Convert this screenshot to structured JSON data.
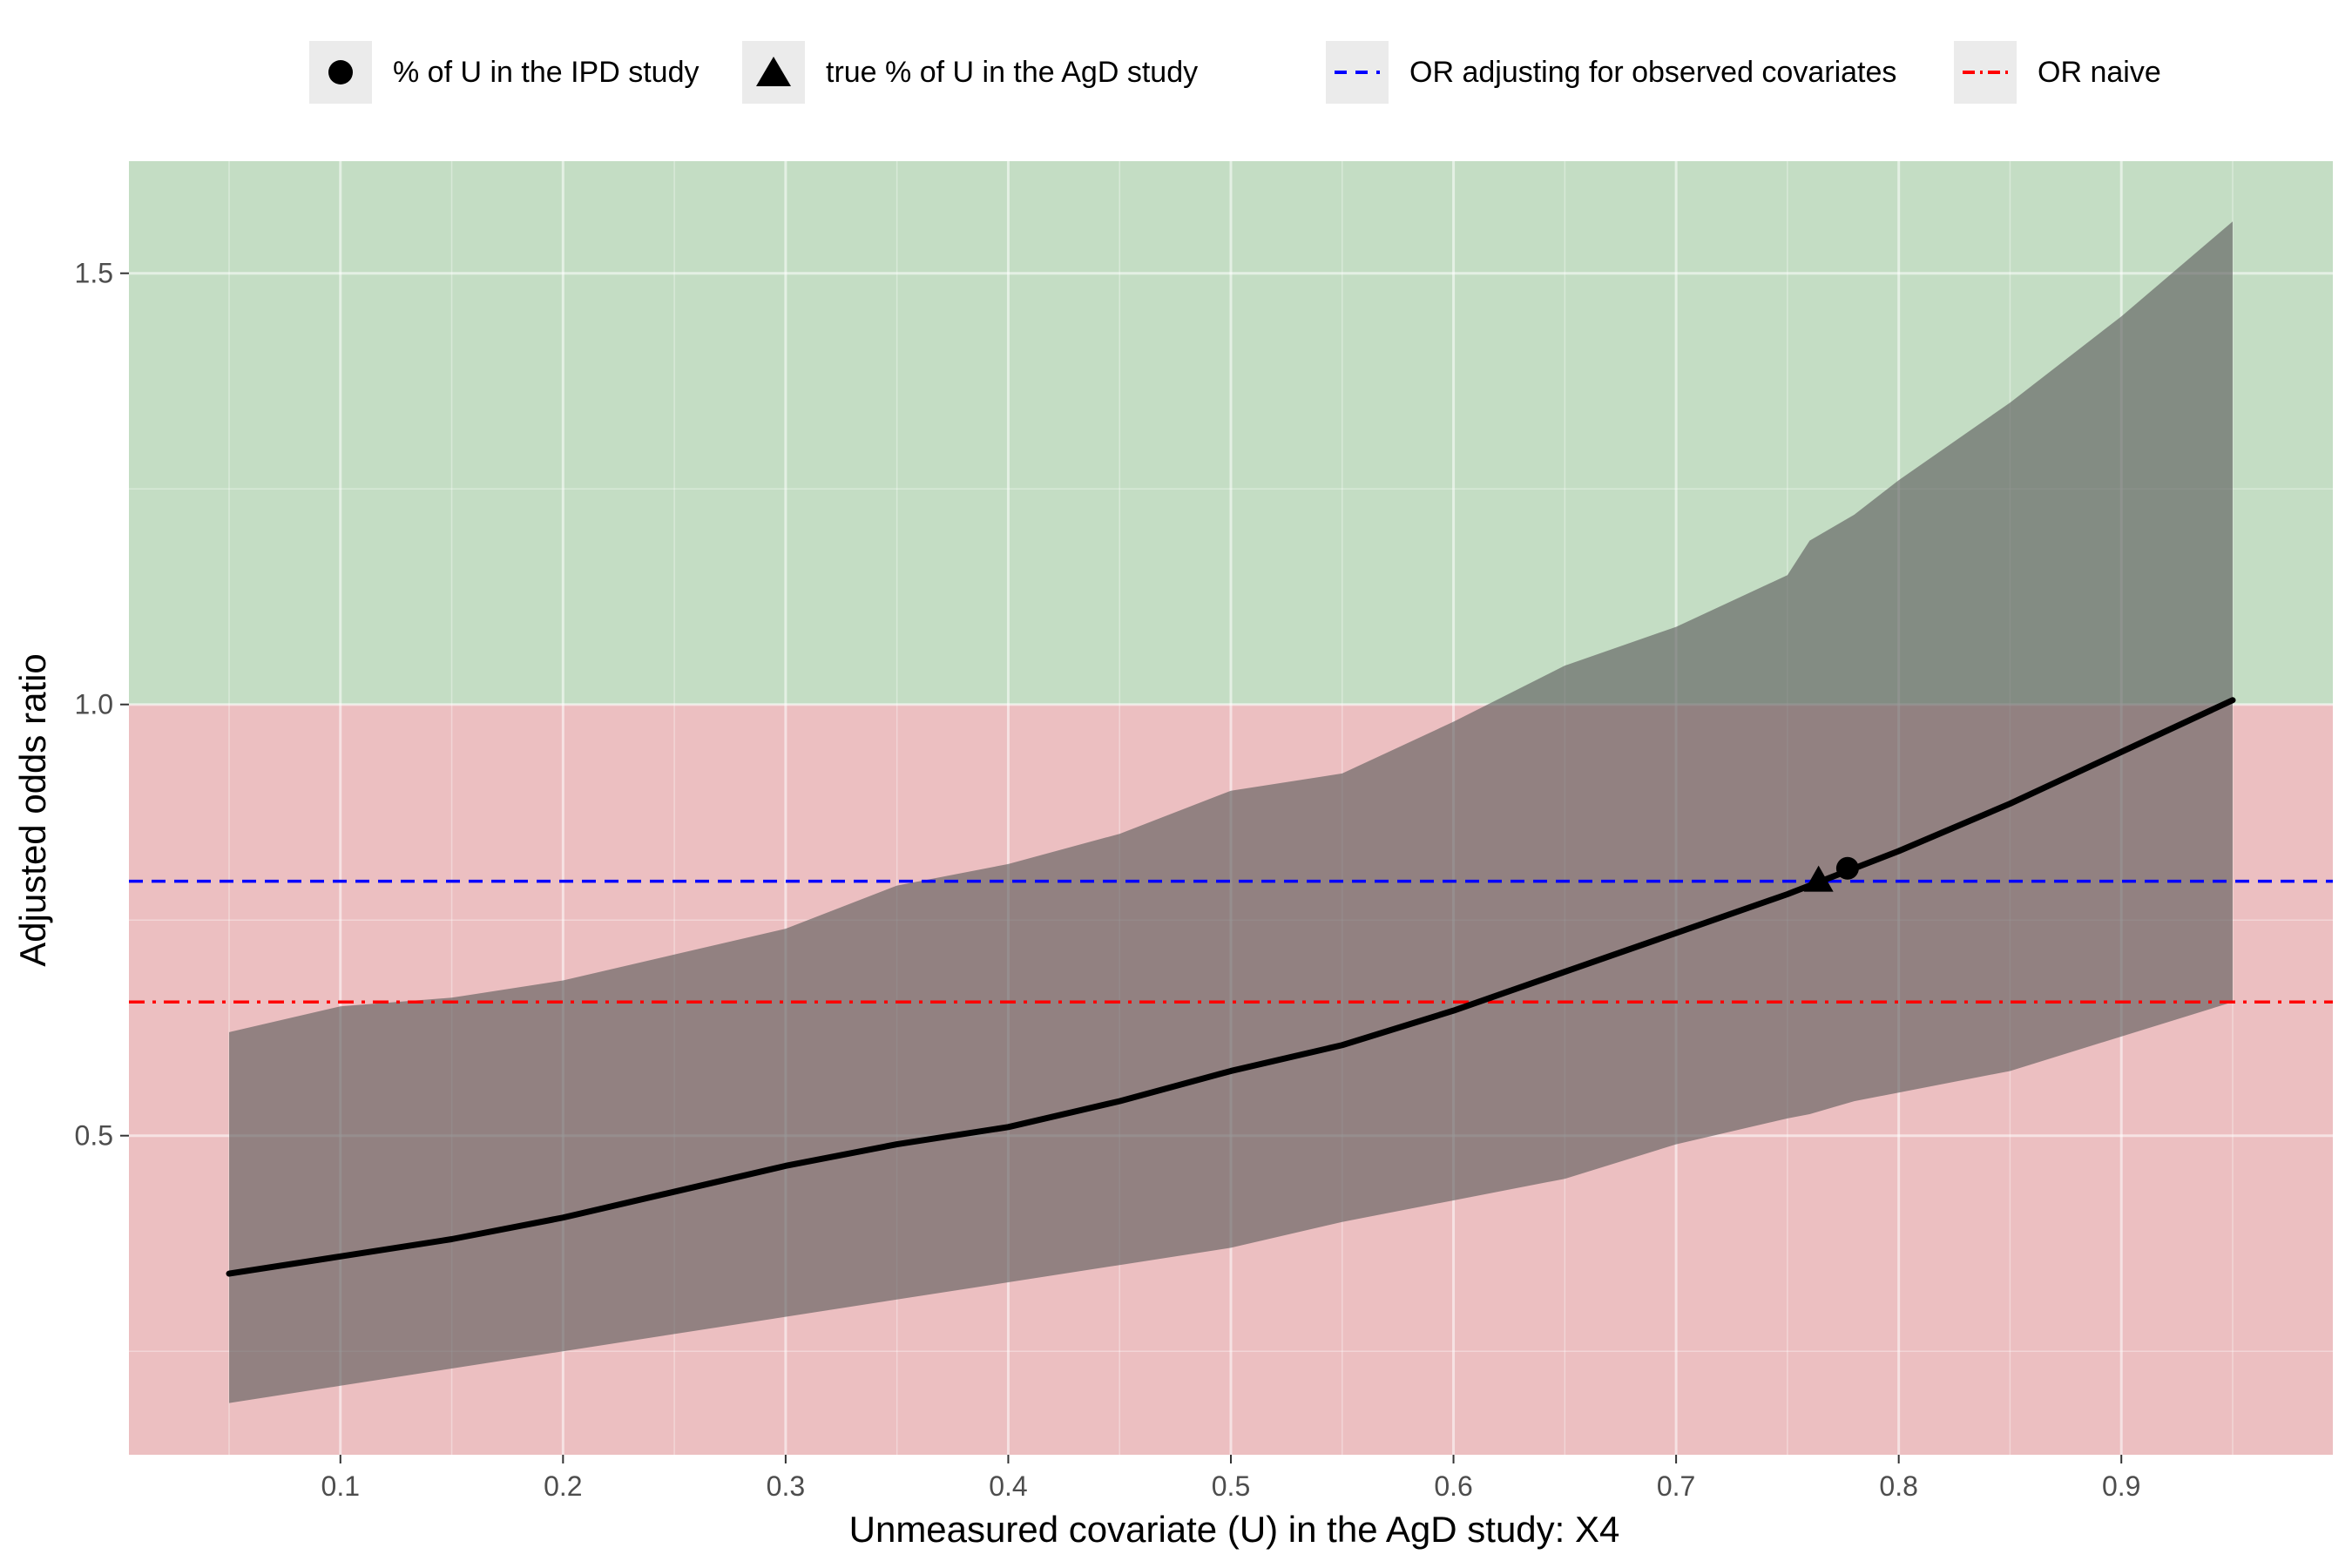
{
  "legend": {
    "items": [
      {
        "label": "% of U in the IPD study",
        "key": "circle"
      },
      {
        "label": "true % of U in the AgD study",
        "key": "triangle"
      },
      {
        "label": "OR adjusting for observed covariates",
        "key": "dashed-line",
        "color": "#0000ff"
      },
      {
        "label": "OR naive",
        "key": "dotdash-line",
        "color": "#ff0000"
      }
    ]
  },
  "chart_data": {
    "type": "line",
    "title": "",
    "xlabel": "Unmeasured covariate (U) in the AgD study: X4",
    "ylabel": "Adjusted odds ratio",
    "xlim": [
      0.005,
      0.995
    ],
    "ylim": [
      0.13,
      1.63
    ],
    "x_ticks": [
      0.1,
      0.2,
      0.3,
      0.4,
      0.5,
      0.6,
      0.7,
      0.8,
      0.9
    ],
    "x_tick_labels": [
      "0.1",
      "0.2",
      "0.3",
      "0.4",
      "0.5",
      "0.6",
      "0.7",
      "0.8",
      "0.9"
    ],
    "y_ticks": [
      0.5,
      1.0,
      1.5
    ],
    "y_tick_labels": [
      "0.5",
      "1.0",
      "1.5"
    ],
    "grid": true,
    "background_regions": [
      {
        "from": 1.0,
        "to": 1.63,
        "color": "#c4ddc4"
      },
      {
        "from": 0.13,
        "to": 1.0,
        "color": "#ecbfc1"
      }
    ],
    "series": [
      {
        "type": "line",
        "color": "#000000",
        "x": [
          0.05,
          0.1,
          0.15,
          0.2,
          0.25,
          0.3,
          0.35,
          0.4,
          0.45,
          0.5,
          0.55,
          0.6,
          0.65,
          0.7,
          0.75,
          0.8,
          0.85,
          0.9,
          0.95
        ],
        "y": [
          0.34,
          0.36,
          0.38,
          0.405,
          0.435,
          0.465,
          0.49,
          0.51,
          0.54,
          0.575,
          0.605,
          0.645,
          0.69,
          0.735,
          0.78,
          0.83,
          0.885,
          0.945,
          1.005
        ]
      },
      {
        "type": "band",
        "color": "#5a5a5a",
        "x": [
          0.05,
          0.1,
          0.15,
          0.2,
          0.25,
          0.3,
          0.35,
          0.4,
          0.45,
          0.5,
          0.55,
          0.6,
          0.65,
          0.7,
          0.75,
          0.76,
          0.78,
          0.8,
          0.85,
          0.9,
          0.95
        ],
        "lower": [
          0.19,
          0.21,
          0.23,
          0.25,
          0.27,
          0.29,
          0.31,
          0.33,
          0.35,
          0.37,
          0.4,
          0.425,
          0.45,
          0.49,
          0.52,
          0.525,
          0.54,
          0.55,
          0.575,
          0.615,
          0.655
        ],
        "upper": [
          0.62,
          0.65,
          0.66,
          0.68,
          0.71,
          0.74,
          0.79,
          0.815,
          0.85,
          0.9,
          0.92,
          0.98,
          1.045,
          1.09,
          1.15,
          1.19,
          1.22,
          1.26,
          1.35,
          1.45,
          1.56
        ]
      }
    ],
    "hlines": [
      {
        "y": 0.795,
        "color": "#0000ff",
        "style": "dashed",
        "label": "OR adjusting for observed covariates"
      },
      {
        "y": 0.655,
        "color": "#ff0000",
        "style": "dotdash",
        "label": "OR naive"
      }
    ],
    "points": [
      {
        "x": 0.777,
        "y": 0.81,
        "shape": "circle",
        "label": "% of U in the IPD study"
      },
      {
        "x": 0.764,
        "y": 0.795,
        "shape": "triangle",
        "label": "true % of U in the AgD study"
      }
    ]
  }
}
